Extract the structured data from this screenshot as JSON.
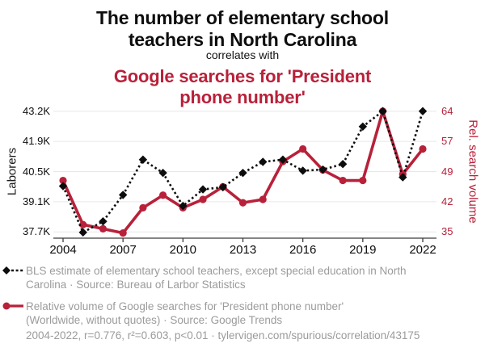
{
  "header": {
    "title_lines": [
      "The number of elementary school",
      "teachers in North Carolina"
    ],
    "connector": "correlates with",
    "subtitle_lines": [
      "Google searches for 'President",
      "phone number'"
    ]
  },
  "chart_data": {
    "type": "line",
    "x": [
      2004,
      2005,
      2006,
      2007,
      2008,
      2009,
      2010,
      2011,
      2012,
      2013,
      2014,
      2015,
      2016,
      2017,
      2018,
      2019,
      2020,
      2021,
      2022
    ],
    "x_tick_labels": [
      "2004",
      "2007",
      "2010",
      "2013",
      "2016",
      "2019",
      "2022"
    ],
    "series": [
      {
        "name": "BLS estimate of elementary school teachers, except special education in North Carolina",
        "axis": "left",
        "units": "thousands of laborers",
        "style": "dashed-line-diamond-markers",
        "color": "#0d0d0d",
        "values": [
          39.8,
          37.7,
          38.2,
          39.4,
          41.0,
          40.4,
          38.9,
          39.65,
          39.75,
          40.4,
          40.9,
          41.0,
          40.5,
          40.55,
          40.8,
          42.5,
          43.2,
          40.2,
          43.2
        ]
      },
      {
        "name": "Relative volume of Google searches for 'President phone number'",
        "axis": "right",
        "units": "relative search volume",
        "style": "solid-line-circle-markers",
        "color": "#b8213a",
        "values": [
          47.5,
          37,
          36,
          35,
          41,
          44,
          41,
          43,
          46,
          42.2,
          43,
          52,
          55,
          50,
          47.5,
          47.5,
          64,
          49,
          55
        ]
      }
    ],
    "y_left": {
      "label": "Laborers",
      "tick_labels": [
        "37.7K",
        "39.1K",
        "40.5K",
        "41.9K",
        "43.2K"
      ],
      "domain": [
        37.72,
        43.2
      ]
    },
    "y_right": {
      "label": "Rel. search volume",
      "tick_labels": [
        "35",
        "42",
        "49",
        "57",
        "64"
      ],
      "domain": [
        35.25,
        64
      ]
    },
    "grid": "horizontal-only",
    "legend_position": "bottom"
  },
  "legend": {
    "items": [
      {
        "marker": "black-diamond-dashed",
        "lines": [
          "BLS estimate of elementary school teachers, except special education in North",
          "Carolina · Source: Bureau of Larbor Statistics"
        ]
      },
      {
        "marker": "red-circle-solid",
        "lines": [
          "Relative volume of Google searches for 'President phone number'",
          "(Worldwide, without quotes) · Source: Google Trends"
        ]
      }
    ]
  },
  "footer": {
    "stats_and_link": "2004-2022, r=0.776, r²=0.603, p<0.01 · tylervigen.com/spurious/correlation/43175"
  },
  "colors": {
    "accent_red": "#b8213a",
    "series_black": "#0d0d0d",
    "gridline": "#e7e7e7",
    "axis_line": "#3c3c3c",
    "muted_text": "#9b9b9b"
  }
}
